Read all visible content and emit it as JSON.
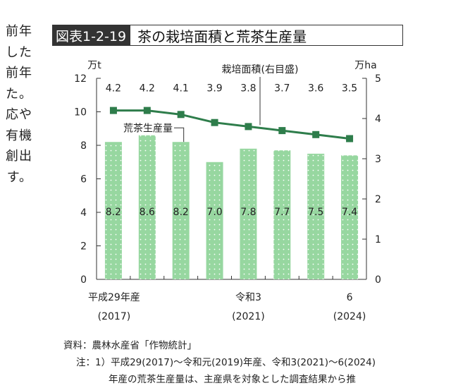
{
  "left_text": {
    "lines": [
      "前年",
      "した",
      "前年",
      "た。",
      "応や",
      "有機",
      "創出",
      "す。"
    ]
  },
  "figure": {
    "number": "図表1-2-19",
    "title": "茶の栽培面積と荒茶生産量"
  },
  "chart_data": {
    "type": "bar+line",
    "categories": [
      "平成29年産",
      "",
      "",
      "",
      "令和3",
      "",
      "",
      "6"
    ],
    "category_years": [
      "(2017)",
      "",
      "",
      "",
      "(2021)",
      "",
      "",
      "(2024)"
    ],
    "series": [
      {
        "name": "荒茶生産量",
        "type": "bar",
        "axis": "left",
        "values": [
          8.2,
          8.6,
          8.2,
          7.0,
          7.8,
          7.7,
          7.5,
          7.4
        ],
        "labels": [
          "8.2",
          "8.6",
          "8.2",
          "7.0",
          "7.8",
          "7.7",
          "7.5",
          "7.4"
        ]
      },
      {
        "name": "栽培面積(右目盛)",
        "type": "line",
        "axis": "right",
        "values": [
          4.2,
          4.2,
          4.1,
          3.9,
          3.8,
          3.7,
          3.6,
          3.5
        ],
        "labels": [
          "4.2",
          "4.2",
          "4.1",
          "3.9",
          "3.8",
          "3.7",
          "3.6",
          "3.5"
        ]
      }
    ],
    "y_left": {
      "unit": "万t",
      "min": 0,
      "max": 12,
      "ticks": [
        0,
        2,
        4,
        6,
        8,
        10,
        12
      ]
    },
    "y_right": {
      "unit": "万ha",
      "min": 0,
      "max": 5,
      "ticks": [
        0,
        1,
        2,
        3,
        4,
        5
      ]
    },
    "colors": {
      "bar": "#97d7a0",
      "bar_dot": "#ffffff",
      "line": "#2e7d4b",
      "marker": "#2e7d4b",
      "axis": "#333333",
      "text": "#222222"
    }
  },
  "notes": {
    "source": "資料：農林水産省「作物統計」",
    "note1": "注：1）平成29(2017)～令和元(2019)年産、令和3(2021)～6(2024)",
    "note1_cont": "年産の荒茶生産量は、主産県を対象とした調査結果から推"
  }
}
